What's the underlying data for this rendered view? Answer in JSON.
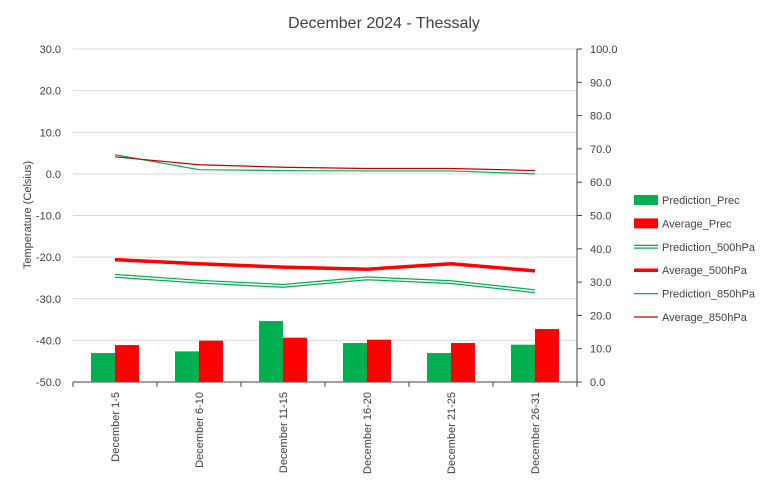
{
  "chart_data": {
    "type": "bar",
    "title": "December 2024 - Thessaly",
    "ylabel": "Temperature (Celsius)",
    "xlabel": "",
    "y_left": {
      "min": -50,
      "max": 30,
      "step": 10,
      "ticks": [
        "30.0",
        "20.0",
        "10.0",
        "0.0",
        "-10.0",
        "-20.0",
        "-30.0",
        "-40.0",
        "-50.0"
      ]
    },
    "y_right": {
      "min": 0,
      "max": 100,
      "step": 10,
      "ticks": [
        "100.0",
        "90.0",
        "80.0",
        "70.0",
        "60.0",
        "50.0",
        "40.0",
        "30.0",
        "20.0",
        "10.0",
        "0.0"
      ]
    },
    "grid": true,
    "legend_position": "right",
    "categories": [
      "December 1-5",
      "December 6-10",
      "December 11-15",
      "December 16-20",
      "December 21-25",
      "December 26-31"
    ],
    "series": [
      {
        "name": "Prediction_Prec",
        "type": "bar",
        "axis": "right",
        "color": "#00b050",
        "values": [
          8.7,
          9.2,
          18.3,
          11.7,
          8.7,
          11.2
        ]
      },
      {
        "name": "Average_Prec",
        "type": "bar",
        "axis": "right",
        "color": "#ff0000",
        "values": [
          11.1,
          12.4,
          13.3,
          12.7,
          11.7,
          15.9
        ]
      },
      {
        "name": "Prediction_500hPa",
        "type": "line",
        "style": "double",
        "axis": "left",
        "color": "#00b050",
        "values": [
          -24.5,
          -25.9,
          -26.9,
          -25.1,
          -26.0,
          -28.2
        ]
      },
      {
        "name": "Average_500hPa",
        "type": "line",
        "style": "thick",
        "axis": "left",
        "color": "#ff0000",
        "values": [
          -20.6,
          -21.6,
          -22.4,
          -22.9,
          -21.6,
          -23.3
        ]
      },
      {
        "name": "Prediction_850hPa",
        "type": "line",
        "style": "thin",
        "axis": "left",
        "color": "#00b050",
        "values": [
          4.6,
          1.0,
          0.8,
          0.7,
          0.7,
          0.0
        ]
      },
      {
        "name": "Average_850hPa",
        "type": "line",
        "style": "thin",
        "axis": "left",
        "color": "#c00000",
        "values": [
          4.1,
          2.2,
          1.6,
          1.3,
          1.3,
          0.8
        ]
      }
    ]
  }
}
